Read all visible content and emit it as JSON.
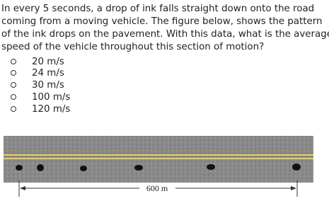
{
  "question": {
    "lines": [
      "In every 5 seconds, a drop of ink falls straight down onto the road",
      "coming from a moving vehicle. The figure below, shows the pattern",
      "of the ink drops on the pavement. With this data, what is the average",
      "speed of the vehicle throughout this section of motion?"
    ]
  },
  "options": [
    "20 m/s",
    "24 m/s",
    "30 m/s",
    "100 m/s",
    "120 m/s"
  ],
  "figure": {
    "distance_label": "600 m"
  }
}
